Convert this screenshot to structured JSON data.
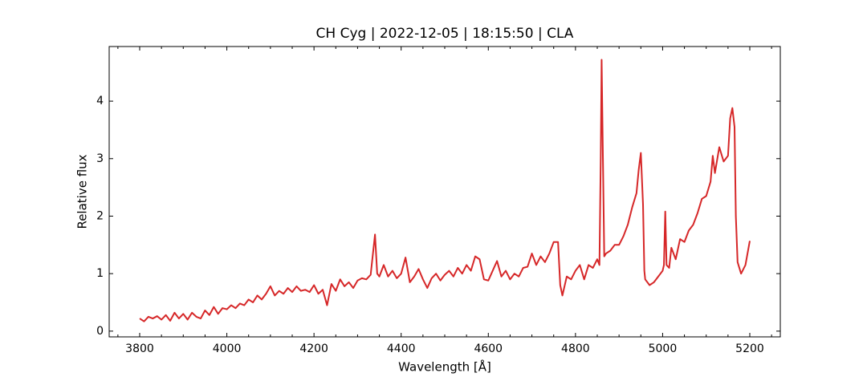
{
  "chart_data": {
    "type": "line",
    "title": "CH Cyg | 2022-12-05 | 18:15:50 | CLA",
    "x_label": "Wavelength [Å]",
    "y_label": "Relative flux",
    "color": "#d62728",
    "xlim": [
      3730,
      5270
    ],
    "ylim": [
      -0.1,
      4.95
    ],
    "xticks": [
      3800,
      4000,
      4200,
      4400,
      4600,
      4800,
      5000,
      5200
    ],
    "xminorticks": [
      3750,
      3850,
      3900,
      3950,
      4050,
      4100,
      4150,
      4250,
      4300,
      4350,
      4450,
      4500,
      4550,
      4650,
      4700,
      4750,
      4850,
      4900,
      4950,
      5050,
      5100,
      5150,
      5250
    ],
    "yticks": [
      0,
      1,
      2,
      3,
      4
    ],
    "x": [
      3800,
      3810,
      3820,
      3830,
      3840,
      3850,
      3860,
      3870,
      3880,
      3890,
      3900,
      3910,
      3920,
      3930,
      3940,
      3950,
      3960,
      3970,
      3980,
      3990,
      4000,
      4010,
      4020,
      4030,
      4040,
      4050,
      4060,
      4070,
      4080,
      4090,
      4100,
      4110,
      4120,
      4130,
      4140,
      4150,
      4160,
      4170,
      4180,
      4190,
      4200,
      4210,
      4220,
      4230,
      4240,
      4250,
      4260,
      4270,
      4280,
      4290,
      4300,
      4310,
      4320,
      4330,
      4340,
      4345,
      4350,
      4360,
      4370,
      4380,
      4390,
      4400,
      4410,
      4420,
      4430,
      4440,
      4450,
      4460,
      4470,
      4480,
      4490,
      4500,
      4510,
      4520,
      4530,
      4540,
      4550,
      4560,
      4570,
      4580,
      4590,
      4600,
      4610,
      4620,
      4630,
      4640,
      4650,
      4660,
      4670,
      4680,
      4690,
      4700,
      4710,
      4720,
      4730,
      4740,
      4750,
      4760,
      4765,
      4770,
      4780,
      4790,
      4800,
      4810,
      4820,
      4830,
      4840,
      4850,
      4855,
      4858,
      4860,
      4863,
      4866,
      4870,
      4880,
      4890,
      4900,
      4910,
      4920,
      4930,
      4940,
      4945,
      4950,
      4955,
      4958,
      4960,
      4970,
      4980,
      4990,
      5000,
      5003,
      5006,
      5009,
      5015,
      5020,
      5030,
      5040,
      5050,
      5060,
      5070,
      5080,
      5090,
      5100,
      5110,
      5115,
      5120,
      5130,
      5140,
      5150,
      5155,
      5160,
      5165,
      5168,
      5172,
      5180,
      5190,
      5200
    ],
    "values": [
      0.22,
      0.17,
      0.25,
      0.22,
      0.26,
      0.2,
      0.28,
      0.18,
      0.32,
      0.22,
      0.3,
      0.2,
      0.32,
      0.25,
      0.22,
      0.36,
      0.28,
      0.42,
      0.3,
      0.4,
      0.38,
      0.45,
      0.4,
      0.48,
      0.45,
      0.55,
      0.5,
      0.62,
      0.55,
      0.65,
      0.78,
      0.62,
      0.7,
      0.65,
      0.75,
      0.68,
      0.78,
      0.7,
      0.72,
      0.68,
      0.8,
      0.65,
      0.72,
      0.45,
      0.82,
      0.7,
      0.9,
      0.78,
      0.85,
      0.75,
      0.88,
      0.92,
      0.9,
      0.98,
      1.68,
      1.0,
      0.95,
      1.15,
      0.95,
      1.05,
      0.92,
      1.0,
      1.28,
      0.85,
      0.95,
      1.08,
      0.9,
      0.75,
      0.92,
      1.0,
      0.88,
      0.98,
      1.05,
      0.95,
      1.1,
      1.0,
      1.15,
      1.05,
      1.3,
      1.25,
      0.9,
      0.88,
      1.05,
      1.22,
      0.95,
      1.05,
      0.9,
      1.0,
      0.95,
      1.1,
      1.12,
      1.35,
      1.15,
      1.3,
      1.2,
      1.35,
      1.55,
      1.55,
      0.8,
      0.62,
      0.95,
      0.9,
      1.05,
      1.15,
      0.9,
      1.15,
      1.1,
      1.25,
      1.15,
      3.0,
      4.72,
      3.0,
      1.3,
      1.35,
      1.4,
      1.5,
      1.5,
      1.65,
      1.85,
      2.15,
      2.4,
      2.8,
      3.1,
      2.2,
      1.05,
      0.9,
      0.8,
      0.85,
      0.95,
      1.05,
      1.15,
      2.08,
      1.15,
      1.1,
      1.45,
      1.25,
      1.6,
      1.55,
      1.75,
      1.85,
      2.05,
      2.3,
      2.35,
      2.6,
      3.05,
      2.75,
      3.2,
      2.95,
      3.05,
      3.7,
      3.88,
      3.55,
      2.0,
      1.2,
      1.0,
      1.15,
      1.57
    ]
  }
}
